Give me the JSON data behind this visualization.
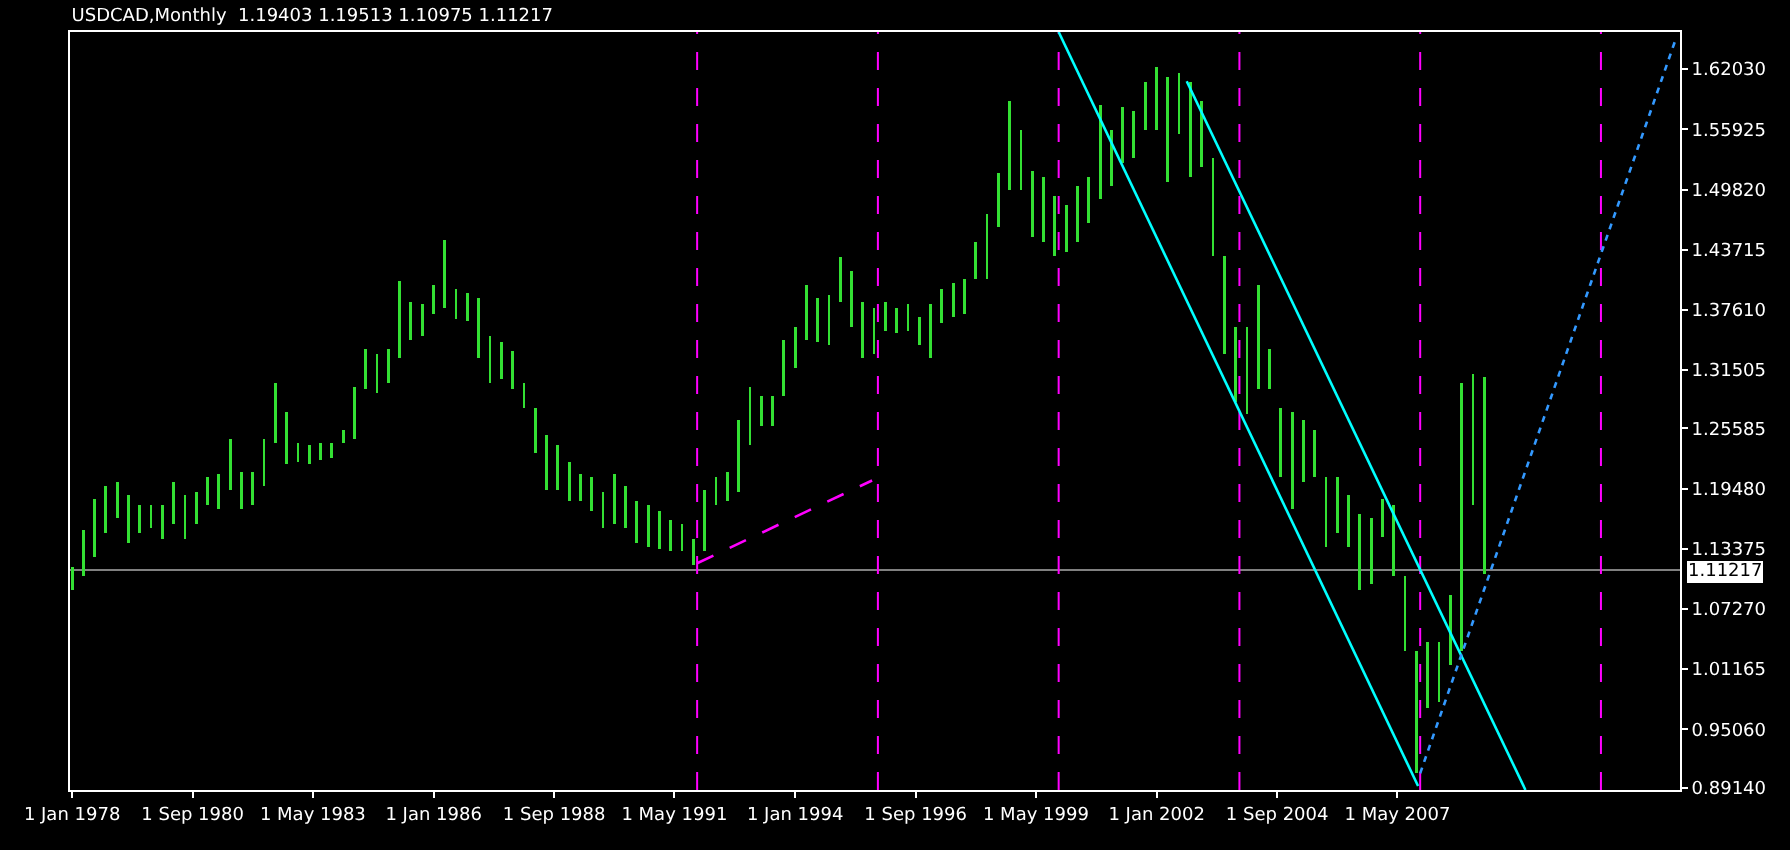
{
  "chart_data": {
    "type": "bar",
    "title": "USDCAD,Monthly  1.19403 1.19513 1.10975 1.11217",
    "x": [
      "1978-01",
      "1978-04",
      "1978-07",
      "1978-10",
      "1979-01",
      "1979-04",
      "1979-07",
      "1979-10",
      "1980-01",
      "1980-04",
      "1980-07",
      "1980-10",
      "1981-01",
      "1981-04",
      "1981-07",
      "1981-10",
      "1982-01",
      "1982-04",
      "1982-07",
      "1982-10",
      "1983-01",
      "1983-04",
      "1983-07",
      "1983-10",
      "1984-01",
      "1984-04",
      "1984-07",
      "1984-10",
      "1985-01",
      "1985-04",
      "1985-07",
      "1985-10",
      "1986-01",
      "1986-04",
      "1986-07",
      "1986-10",
      "1987-01",
      "1987-04",
      "1987-07",
      "1987-10",
      "1988-01",
      "1988-04",
      "1988-07",
      "1988-10",
      "1989-01",
      "1989-04",
      "1989-07",
      "1989-10",
      "1990-01",
      "1990-04",
      "1990-07",
      "1990-10",
      "1991-01",
      "1991-04",
      "1991-07",
      "1991-10",
      "1992-01",
      "1992-04",
      "1992-07",
      "1992-10",
      "1993-01",
      "1993-04",
      "1993-07",
      "1993-10",
      "1994-01",
      "1994-04",
      "1994-07",
      "1994-10",
      "1995-01",
      "1995-04",
      "1995-07",
      "1995-10",
      "1996-01",
      "1996-04",
      "1996-07",
      "1996-10",
      "1997-01",
      "1997-04",
      "1997-07",
      "1997-10",
      "1998-01",
      "1998-04",
      "1998-07",
      "1998-10",
      "1999-01",
      "1999-04",
      "1999-07",
      "1999-10",
      "2000-01",
      "2000-04",
      "2000-07",
      "2000-10",
      "2001-01",
      "2001-04",
      "2001-07",
      "2001-10",
      "2002-01",
      "2002-04",
      "2002-07",
      "2002-10",
      "2003-01",
      "2003-04",
      "2003-07",
      "2003-10",
      "2004-01",
      "2004-04",
      "2004-07",
      "2004-10",
      "2005-01",
      "2005-04",
      "2005-07",
      "2005-10",
      "2006-01",
      "2006-04",
      "2006-07",
      "2006-10",
      "2007-01",
      "2007-04",
      "2007-07",
      "2007-10",
      "2008-01",
      "2008-04",
      "2008-07",
      "2008-10",
      "2009-01",
      "2009-04"
    ],
    "series": [
      {
        "color": "#33e033",
        "base": [
          1.092,
          1.106,
          1.125,
          1.15,
          1.165,
          1.14,
          1.15,
          1.155,
          1.144,
          1.159,
          1.144,
          1.159,
          1.178,
          1.174,
          1.193,
          1.174,
          1.178,
          1.197,
          1.241,
          1.22,
          1.222,
          1.22,
          1.224,
          1.226,
          1.241,
          1.245,
          1.296,
          1.292,
          1.302,
          1.327,
          1.346,
          1.35,
          1.372,
          1.378,
          1.367,
          1.365,
          1.327,
          1.302,
          1.306,
          1.296,
          1.277,
          1.231,
          1.193,
          1.193,
          1.182,
          1.182,
          1.172,
          1.155,
          1.159,
          1.155,
          1.14,
          1.136,
          1.134,
          1.131,
          1.131,
          1.117,
          1.131,
          1.178,
          1.182,
          1.191,
          1.239,
          1.258,
          1.258,
          1.289,
          1.317,
          1.346,
          1.344,
          1.34,
          1.384,
          1.359,
          1.327,
          1.331,
          1.355,
          1.353,
          1.355,
          1.34,
          1.327,
          1.363,
          1.369,
          1.372,
          1.407,
          1.407,
          1.46,
          1.498,
          1.498,
          1.45,
          1.445,
          1.431,
          1.435,
          1.445,
          1.464,
          1.489,
          1.502,
          1.525,
          1.53,
          1.559,
          1.559,
          1.506,
          1.555,
          1.511,
          1.521,
          1.431,
          1.331,
          1.283,
          1.27,
          1.296,
          1.296,
          1.207,
          1.174,
          1.201,
          1.207,
          1.136,
          1.15,
          1.136,
          1.092,
          1.098,
          1.146,
          1.106,
          1.03,
          0.906,
          0.972,
          0.978,
          1.016,
          1.03,
          1.178,
          1.108
        ],
        "values": [
          0.023,
          0.047,
          0.059,
          0.047,
          0.036,
          0.048,
          0.028,
          0.023,
          0.034,
          0.042,
          0.044,
          0.032,
          0.029,
          0.036,
          0.052,
          0.038,
          0.034,
          0.048,
          0.061,
          0.053,
          0.019,
          0.019,
          0.017,
          0.015,
          0.013,
          0.053,
          0.04,
          0.039,
          0.034,
          0.078,
          0.038,
          0.032,
          0.029,
          0.069,
          0.03,
          0.028,
          0.061,
          0.048,
          0.038,
          0.038,
          0.025,
          0.046,
          0.056,
          0.046,
          0.04,
          0.028,
          0.035,
          0.036,
          0.051,
          0.042,
          0.042,
          0.042,
          0.038,
          0.032,
          0.028,
          0.027,
          0.062,
          0.029,
          0.03,
          0.073,
          0.059,
          0.031,
          0.031,
          0.057,
          0.042,
          0.055,
          0.044,
          0.051,
          0.046,
          0.057,
          0.057,
          0.047,
          0.029,
          0.025,
          0.027,
          0.029,
          0.055,
          0.034,
          0.034,
          0.035,
          0.038,
          0.066,
          0.055,
          0.09,
          0.061,
          0.067,
          0.066,
          0.061,
          0.048,
          0.057,
          0.047,
          0.095,
          0.057,
          0.057,
          0.048,
          0.048,
          0.063,
          0.106,
          0.061,
          0.096,
          0.067,
          0.099,
          0.1,
          0.076,
          0.089,
          0.105,
          0.04,
          0.07,
          0.099,
          0.063,
          0.047,
          0.071,
          0.057,
          0.052,
          0.077,
          0.067,
          0.038,
          0.072,
          0.076,
          0.124,
          0.067,
          0.061,
          0.071,
          0.272,
          0.133,
          0.2
        ]
      },
      {
        "type": "line",
        "color": "#00ffff",
        "line_style": "solid",
        "x": [
          "1999-11",
          "2007-10-15"
        ],
        "values": [
          1.658,
          0.893
        ]
      },
      {
        "type": "line",
        "color": "#00ffff",
        "line_style": "solid",
        "x": [
          "2002-09",
          "2010-03"
        ],
        "values": [
          1.608,
          0.889
        ]
      },
      {
        "type": "line",
        "color": "#ff00ff",
        "line_style": "dashed",
        "x": [
          "1991-11",
          "1995-09-15"
        ],
        "values": [
          1.119,
          1.203
        ]
      },
      {
        "type": "line",
        "color": "#3399ff",
        "line_style": "dotted",
        "x": [
          "2007-11",
          "2013-07"
        ],
        "values": [
          0.906,
          1.652
        ]
      }
    ],
    "xlim": [
      "1977-12-15",
      "2013-08"
    ],
    "xticks": [
      {
        "value": "1978-01",
        "label": "1 Jan 1978"
      },
      {
        "value": "1980-09",
        "label": "1 Sep 1980"
      },
      {
        "value": "1983-05",
        "label": "1 May 1983"
      },
      {
        "value": "1986-01",
        "label": "1 Jan 1986"
      },
      {
        "value": "1988-09",
        "label": "1 Sep 1988"
      },
      {
        "value": "1991-05",
        "label": "1 May 1991"
      },
      {
        "value": "1994-01",
        "label": "1 Jan 1994"
      },
      {
        "value": "1996-09",
        "label": "1 Sep 1996"
      },
      {
        "value": "1999-05",
        "label": "1 May 1999"
      },
      {
        "value": "2002-01",
        "label": "1 Jan 2002"
      },
      {
        "value": "2004-09",
        "label": "1 Sep 2004"
      },
      {
        "value": "2007-05",
        "label": "1 May 2007"
      }
    ],
    "ylim": [
      0.889,
      1.658
    ],
    "yticks": [
      {
        "value": 0.8914,
        "label": "0.89140"
      },
      {
        "value": 0.9506,
        "label": "0.95060"
      },
      {
        "value": 1.01165,
        "label": "1.01165"
      },
      {
        "value": 1.0727,
        "label": "1.07270"
      },
      {
        "value": 1.13375,
        "label": "1.13375"
      },
      {
        "value": 1.1948,
        "label": "1.19480"
      },
      {
        "value": 1.25585,
        "label": "1.25585"
      },
      {
        "value": 1.31505,
        "label": "1.31505"
      },
      {
        "value": 1.3761,
        "label": "1.37610"
      },
      {
        "value": 1.43715,
        "label": "1.43715"
      },
      {
        "value": 1.4982,
        "label": "1.49820"
      },
      {
        "value": 1.55925,
        "label": "1.55925"
      },
      {
        "value": 1.6203,
        "label": "1.62030"
      }
    ],
    "ref_lines": [
      {
        "axis": "y",
        "value": 1.11217,
        "label": "1.11217",
        "color": "#808080",
        "line_style": "solid"
      },
      {
        "axis": "x",
        "value": "1991-11",
        "color": "#ff00ff",
        "line_style": "dashed"
      },
      {
        "axis": "x",
        "value": "1995-11",
        "color": "#ff00ff",
        "line_style": "dashed"
      },
      {
        "axis": "x",
        "value": "1999-11",
        "color": "#ff00ff",
        "line_style": "dashed"
      },
      {
        "axis": "x",
        "value": "2003-11",
        "color": "#ff00ff",
        "line_style": "dashed"
      },
      {
        "axis": "x",
        "value": "2007-11",
        "color": "#ff00ff",
        "line_style": "dashed"
      },
      {
        "axis": "x",
        "value": "2011-11",
        "color": "#ff00ff",
        "line_style": "dashed"
      }
    ]
  }
}
